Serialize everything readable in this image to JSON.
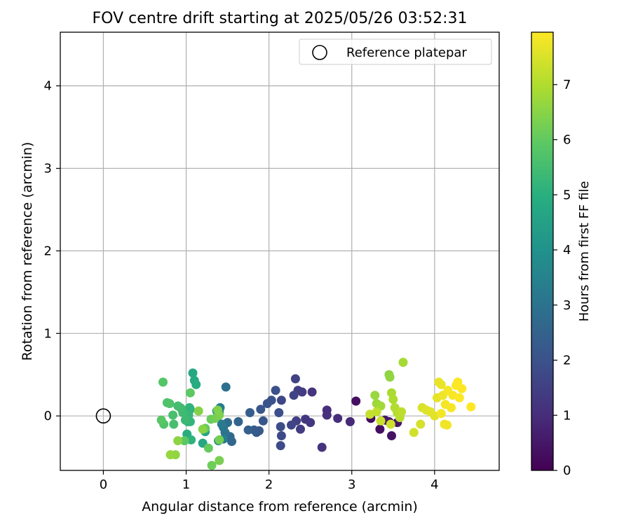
{
  "chart_data": {
    "type": "scatter",
    "title": "FOV centre drift starting at 2025/05/26 03:52:31",
    "xlabel": "Angular distance from reference (arcmin)",
    "ylabel": "Rotation from reference (arcmin)",
    "xlim": [
      -0.52,
      4.78
    ],
    "ylim": [
      -0.66,
      4.65
    ],
    "xticks": [
      0,
      1,
      2,
      3,
      4
    ],
    "yticks": [
      0,
      1,
      2,
      3,
      4
    ],
    "grid": true,
    "legend": {
      "placement": "top-right",
      "entries": [
        "Reference platepar"
      ]
    },
    "colorbar": {
      "label": "Hours from first FF file",
      "colormap": "viridis",
      "min": 0,
      "max": 7.95,
      "ticks": [
        0,
        1,
        2,
        3,
        4,
        5,
        6,
        7
      ]
    },
    "reference_point": {
      "name": "Reference platepar",
      "x": 0,
      "y": 0
    },
    "series": [
      {
        "points": [
          [
            3.05,
            0.18,
            0.35
          ],
          [
            3.23,
            -0.03,
            0.25
          ],
          [
            3.34,
            -0.16,
            0.3
          ],
          [
            3.48,
            -0.24,
            0.4
          ],
          [
            3.55,
            -0.08,
            0.45
          ],
          [
            3.45,
            -0.07,
            0.5
          ],
          [
            3.4,
            -0.05,
            0.55
          ],
          [
            2.98,
            -0.07,
            0.9
          ],
          [
            2.83,
            -0.03,
            1.0
          ],
          [
            2.7,
            0.07,
            1.05
          ],
          [
            2.7,
            0.01,
            1.1
          ],
          [
            2.64,
            -0.38,
            1.15
          ],
          [
            2.52,
            0.29,
            1.2
          ],
          [
            2.5,
            -0.08,
            1.25
          ],
          [
            2.44,
            -0.04,
            1.3
          ],
          [
            2.4,
            0.29,
            1.35
          ],
          [
            2.38,
            -0.16,
            1.4
          ],
          [
            2.35,
            0.31,
            1.45
          ],
          [
            2.33,
            -0.06,
            1.5
          ],
          [
            2.32,
            0.45,
            1.55
          ],
          [
            2.3,
            0.25,
            1.6
          ],
          [
            2.27,
            -0.11,
            1.65
          ],
          [
            2.15,
            0.19,
            1.7
          ],
          [
            2.15,
            -0.24,
            1.75
          ],
          [
            2.14,
            -0.36,
            1.8
          ],
          [
            2.14,
            -0.13,
            1.85
          ],
          [
            2.12,
            0.04,
            1.9
          ],
          [
            2.08,
            0.31,
            1.95
          ],
          [
            2.03,
            0.19,
            2.0
          ],
          [
            1.98,
            0.15,
            2.05
          ],
          [
            1.93,
            -0.06,
            2.1
          ],
          [
            1.9,
            0.08,
            2.15
          ],
          [
            1.88,
            -0.18,
            2.2
          ],
          [
            1.85,
            -0.2,
            2.25
          ],
          [
            1.82,
            -0.17,
            2.3
          ],
          [
            1.77,
            0.04,
            2.35
          ],
          [
            1.75,
            -0.17,
            2.4
          ],
          [
            1.63,
            -0.07,
            2.5
          ],
          [
            1.55,
            -0.31,
            2.6
          ],
          [
            1.53,
            -0.25,
            2.7
          ],
          [
            1.5,
            -0.08,
            2.8
          ],
          [
            1.48,
            0.35,
            2.9
          ],
          [
            1.47,
            -0.2,
            3.0
          ],
          [
            1.45,
            -0.14,
            3.1
          ],
          [
            1.43,
            -0.1,
            3.2
          ],
          [
            1.41,
            0.1,
            3.3
          ],
          [
            1.45,
            -0.28,
            3.4
          ],
          [
            1.4,
            0.04,
            3.5
          ],
          [
            1.39,
            -0.3,
            3.6
          ],
          [
            1.38,
            -0.01,
            3.7
          ],
          [
            1.37,
            0.06,
            3.8
          ],
          [
            1.23,
            -0.19,
            4.6
          ],
          [
            1.2,
            -0.33,
            4.7
          ],
          [
            1.08,
            0.52,
            4.75
          ],
          [
            1.1,
            0.43,
            4.8
          ],
          [
            1.12,
            0.38,
            4.85
          ],
          [
            1.0,
            -0.04,
            4.9
          ],
          [
            1.01,
            -0.22,
            4.95
          ],
          [
            1.02,
            -0.07,
            5.0
          ],
          [
            1.05,
            0.08,
            5.05
          ],
          [
            1.06,
            -0.29,
            5.1
          ],
          [
            1.04,
            0.1,
            5.15
          ],
          [
            1.05,
            -0.07,
            5.2
          ],
          [
            1.03,
            0.01,
            5.25
          ],
          [
            0.95,
            0.08,
            5.3
          ],
          [
            0.99,
            -0.05,
            5.35
          ],
          [
            0.96,
            0.04,
            5.4
          ],
          [
            0.93,
            0.1,
            5.45
          ],
          [
            0.9,
            0.12,
            5.5
          ],
          [
            0.85,
            -0.1,
            5.55
          ],
          [
            0.84,
            0.01,
            5.6
          ],
          [
            0.8,
            0.15,
            5.65
          ],
          [
            0.77,
            0.16,
            5.7
          ],
          [
            0.73,
            -0.1,
            5.75
          ],
          [
            0.72,
            0.41,
            5.8
          ],
          [
            0.7,
            -0.05,
            5.85
          ],
          [
            0.98,
            -0.3,
            5.9
          ],
          [
            1.05,
            0.28,
            5.95
          ],
          [
            1.23,
            -0.15,
            6.0
          ],
          [
            1.27,
            -0.39,
            6.05
          ],
          [
            1.3,
            -0.04,
            6.1
          ],
          [
            1.31,
            -0.6,
            6.15
          ],
          [
            1.35,
            -0.03,
            6.2
          ],
          [
            1.4,
            -0.29,
            6.25
          ],
          [
            1.4,
            -0.54,
            6.3
          ],
          [
            1.4,
            0.01,
            6.35
          ],
          [
            1.38,
            0.07,
            6.4
          ],
          [
            1.15,
            0.06,
            6.45
          ],
          [
            1.2,
            -0.16,
            6.5
          ],
          [
            0.9,
            -0.3,
            6.55
          ],
          [
            0.87,
            -0.47,
            6.6
          ],
          [
            0.81,
            -0.47,
            6.65
          ],
          [
            3.28,
            0.25,
            6.7
          ],
          [
            3.3,
            0.15,
            6.75
          ],
          [
            3.35,
            0.12,
            6.8
          ],
          [
            3.45,
            0.5,
            6.55
          ],
          [
            3.46,
            0.47,
            6.6
          ],
          [
            3.62,
            0.65,
            6.85
          ],
          [
            3.48,
            0.28,
            6.9
          ],
          [
            3.5,
            0.2,
            6.95
          ],
          [
            3.52,
            0.1,
            7.0
          ],
          [
            3.55,
            0.04,
            7.05
          ],
          [
            3.58,
            -0.02,
            7.1
          ],
          [
            3.6,
            0.05,
            7.15
          ],
          [
            3.3,
            0.05,
            7.2
          ],
          [
            3.22,
            0.02,
            7.25
          ],
          [
            3.35,
            -0.06,
            7.3
          ],
          [
            3.47,
            -0.1,
            7.35
          ],
          [
            3.75,
            -0.2,
            7.4
          ],
          [
            3.83,
            -0.1,
            7.45
          ],
          [
            3.85,
            0.1,
            7.5
          ],
          [
            3.9,
            0.07,
            7.55
          ],
          [
            3.95,
            0.05,
            7.6
          ],
          [
            4.0,
            0.0,
            7.62
          ],
          [
            4.03,
            0.22,
            7.65
          ],
          [
            4.05,
            0.41,
            7.7
          ],
          [
            4.08,
            0.38,
            7.72
          ],
          [
            4.1,
            0.25,
            7.75
          ],
          [
            4.12,
            -0.1,
            7.78
          ],
          [
            4.15,
            -0.11,
            7.8
          ],
          [
            4.08,
            0.03,
            7.82
          ],
          [
            4.13,
            0.14,
            7.84
          ],
          [
            4.16,
            0.31,
            7.86
          ],
          [
            4.2,
            0.1,
            7.88
          ],
          [
            4.22,
            0.25,
            7.9
          ],
          [
            4.26,
            0.37,
            7.92
          ],
          [
            4.28,
            0.41,
            7.93
          ],
          [
            4.3,
            0.22,
            7.94
          ],
          [
            4.33,
            0.33,
            7.95
          ],
          [
            4.44,
            0.11,
            7.95
          ]
        ]
      }
    ]
  }
}
